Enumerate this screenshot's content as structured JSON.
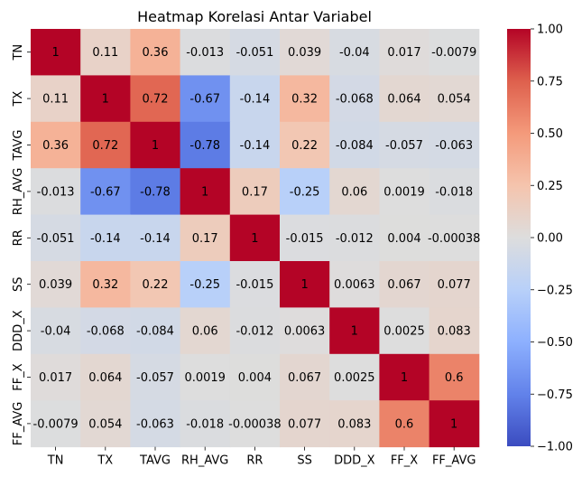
{
  "chart_data": {
    "type": "heatmap",
    "title": "Heatmap Korelasi Antar Variabel",
    "xlabel": "",
    "ylabel": "",
    "variables": [
      "TN",
      "TX",
      "TAVG",
      "RH_AVG",
      "RR",
      "SS",
      "DDD_X",
      "FF_X",
      "FF_AVG"
    ],
    "values": [
      [
        1,
        0.11,
        0.36,
        -0.013,
        -0.051,
        0.039,
        -0.04,
        0.017,
        -0.0079
      ],
      [
        0.11,
        1,
        0.72,
        -0.67,
        -0.14,
        0.32,
        -0.068,
        0.064,
        0.054
      ],
      [
        0.36,
        0.72,
        1,
        -0.78,
        -0.14,
        0.22,
        -0.084,
        -0.057,
        -0.063
      ],
      [
        -0.013,
        -0.67,
        -0.78,
        1,
        0.17,
        -0.25,
        0.06,
        0.0019,
        -0.018
      ],
      [
        -0.051,
        -0.14,
        -0.14,
        0.17,
        1,
        -0.015,
        -0.012,
        0.004,
        -0.00038
      ],
      [
        0.039,
        0.32,
        0.22,
        -0.25,
        -0.015,
        1,
        0.0063,
        0.067,
        0.077
      ],
      [
        -0.04,
        -0.068,
        -0.084,
        0.06,
        -0.012,
        0.0063,
        1,
        0.0025,
        0.083
      ],
      [
        0.017,
        0.064,
        -0.057,
        0.0019,
        0.004,
        0.067,
        0.0025,
        1,
        0.6
      ],
      [
        -0.0079,
        0.054,
        -0.063,
        -0.018,
        -0.00038,
        0.077,
        0.083,
        0.6,
        1
      ]
    ],
    "value_labels": [
      [
        "1",
        "0.11",
        "0.36",
        "-0.013",
        "-0.051",
        "0.039",
        "-0.04",
        "0.017",
        "-0.0079"
      ],
      [
        "0.11",
        "1",
        "0.72",
        "-0.67",
        "-0.14",
        "0.32",
        "-0.068",
        "0.064",
        "0.054"
      ],
      [
        "0.36",
        "0.72",
        "1",
        "-0.78",
        "-0.14",
        "0.22",
        "-0.084",
        "-0.057",
        "-0.063"
      ],
      [
        "-0.013",
        "-0.67",
        "-0.78",
        "1",
        "0.17",
        "-0.25",
        "0.06",
        "0.0019",
        "-0.018"
      ],
      [
        "-0.051",
        "-0.14",
        "-0.14",
        "0.17",
        "1",
        "-0.015",
        "-0.012",
        "0.004",
        "-0.00038"
      ],
      [
        "0.039",
        "0.32",
        "0.22",
        "-0.25",
        "-0.015",
        "1",
        "0.0063",
        "0.067",
        "0.077"
      ],
      [
        "-0.04",
        "-0.068",
        "-0.084",
        "0.06",
        "-0.012",
        "0.0063",
        "1",
        "0.0025",
        "0.083"
      ],
      [
        "0.017",
        "0.064",
        "-0.057",
        "0.0019",
        "0.004",
        "0.067",
        "0.0025",
        "1",
        "0.6"
      ],
      [
        "-0.0079",
        "0.054",
        "-0.063",
        "-0.018",
        "-0.00038",
        "0.077",
        "0.083",
        "0.6",
        "1"
      ]
    ],
    "colormap": "coolwarm",
    "vmin": -1,
    "vmax": 1,
    "colorbar": {
      "ticks": [
        1.0,
        0.75,
        0.5,
        0.25,
        0.0,
        -0.25,
        -0.5,
        -0.75,
        -1.0
      ],
      "tick_labels": [
        "1.00",
        "0.75",
        "0.50",
        "0.25",
        "0.00",
        "−0.25",
        "−0.50",
        "−0.75",
        "−1.00"
      ]
    },
    "grid": false,
    "legend": "colorbar-right",
    "colors": {
      "low": "#3b4cc0",
      "mid": "#dddddd",
      "high": "#b40426"
    }
  }
}
